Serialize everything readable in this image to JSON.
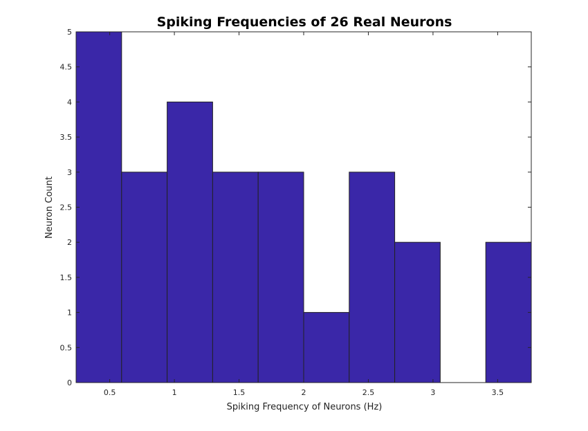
{
  "chart_data": {
    "type": "bar",
    "title": "Spiking Frequencies of 26 Real Neurons",
    "xlabel": "Spiking Frequency of Neurons (Hz)",
    "ylabel": "Neuron Count",
    "bin_edges": [
      0.24,
      0.592,
      0.944,
      1.296,
      1.648,
      2.0,
      2.352,
      2.704,
      3.056,
      3.408,
      3.76
    ],
    "values": [
      5,
      3,
      4,
      3,
      3,
      1,
      3,
      2,
      0,
      2
    ],
    "xlim": [
      0.24,
      3.76
    ],
    "ylim": [
      0,
      5
    ],
    "xticks": [
      0.5,
      1,
      1.5,
      2,
      2.5,
      3,
      3.5
    ],
    "xtick_labels": [
      "0.5",
      "1",
      "1.5",
      "2",
      "2.5",
      "3",
      "3.5"
    ],
    "yticks": [
      0,
      0.5,
      1,
      1.5,
      2,
      2.5,
      3,
      3.5,
      4,
      4.5,
      5
    ],
    "ytick_labels": [
      "0",
      "0.5",
      "1",
      "1.5",
      "2",
      "2.5",
      "3",
      "3.5",
      "4",
      "4.5",
      "5"
    ],
    "bar_color": "#3a27a8",
    "edge_color": "#222222",
    "grid": false
  }
}
